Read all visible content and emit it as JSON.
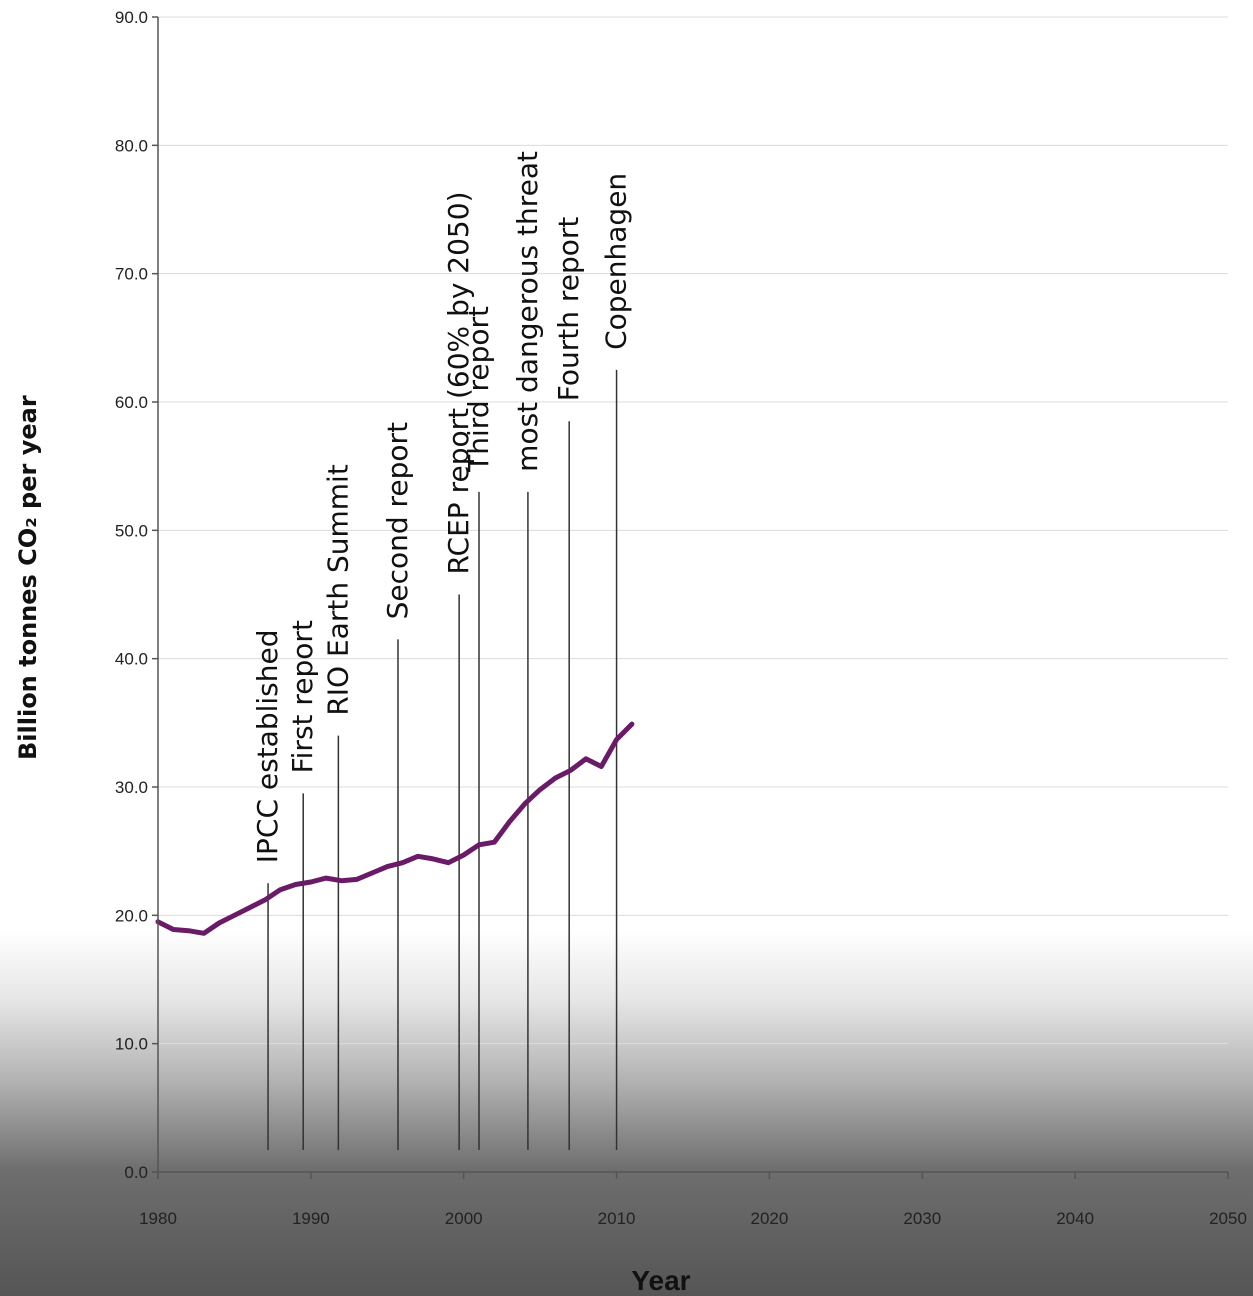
{
  "chart_data": {
    "type": "line",
    "title": "",
    "xlabel": "Year",
    "ylabel": "Billion tonnes CO₂ per year",
    "xlim": [
      1980,
      2050
    ],
    "ylim": [
      0,
      90
    ],
    "x_ticks": [
      "1980",
      "1990",
      "2000",
      "2010",
      "2020",
      "2030",
      "2040",
      "2050"
    ],
    "y_ticks": [
      "0.0",
      "10.0",
      "20.0",
      "30.0",
      "40.0",
      "50.0",
      "60.0",
      "70.0",
      "80.0",
      "90.0"
    ],
    "grid": "horizontal",
    "series": [
      {
        "color": "#6a1b68",
        "x": [
          1980,
          1981,
          1982,
          1983,
          1984,
          1985,
          1986,
          1987,
          1988,
          1989,
          1990,
          1991,
          1992,
          1993,
          1994,
          1995,
          1996,
          1997,
          1998,
          1999,
          2000,
          2001,
          2002,
          2003,
          2004,
          2005,
          2006,
          2007,
          2008,
          2009,
          2010,
          2011
        ],
        "y": [
          19.5,
          18.9,
          18.8,
          18.6,
          19.4,
          20.0,
          20.6,
          21.2,
          22.0,
          22.4,
          22.6,
          22.9,
          22.7,
          22.8,
          23.3,
          23.8,
          24.1,
          24.6,
          24.4,
          24.1,
          24.7,
          25.5,
          25.7,
          27.3,
          28.7,
          29.8,
          30.7,
          31.3,
          32.2,
          31.6,
          33.7,
          34.9
        ]
      }
    ],
    "annotations": [
      {
        "year": 1987.2,
        "label": "IPCC established",
        "top": 22.5
      },
      {
        "year": 1989.5,
        "label": "First report",
        "top": 29.5
      },
      {
        "year": 1991.8,
        "label": "RIO Earth Summit",
        "top": 34.0
      },
      {
        "year": 1995.7,
        "label": "Second report",
        "top": 41.5
      },
      {
        "year": 1999.7,
        "label": "RCEP report  (60% by 2050)",
        "top": 45.0
      },
      {
        "year": 2001.0,
        "label": "Third report",
        "top": 53.0
      },
      {
        "year": 2004.2,
        "label": "most dangerous threat",
        "top": 53.0
      },
      {
        "year": 2006.9,
        "label": "Fourth report",
        "top": 58.5
      },
      {
        "year": 2010.0,
        "label": "Copenhagen",
        "top": 62.5
      }
    ]
  }
}
